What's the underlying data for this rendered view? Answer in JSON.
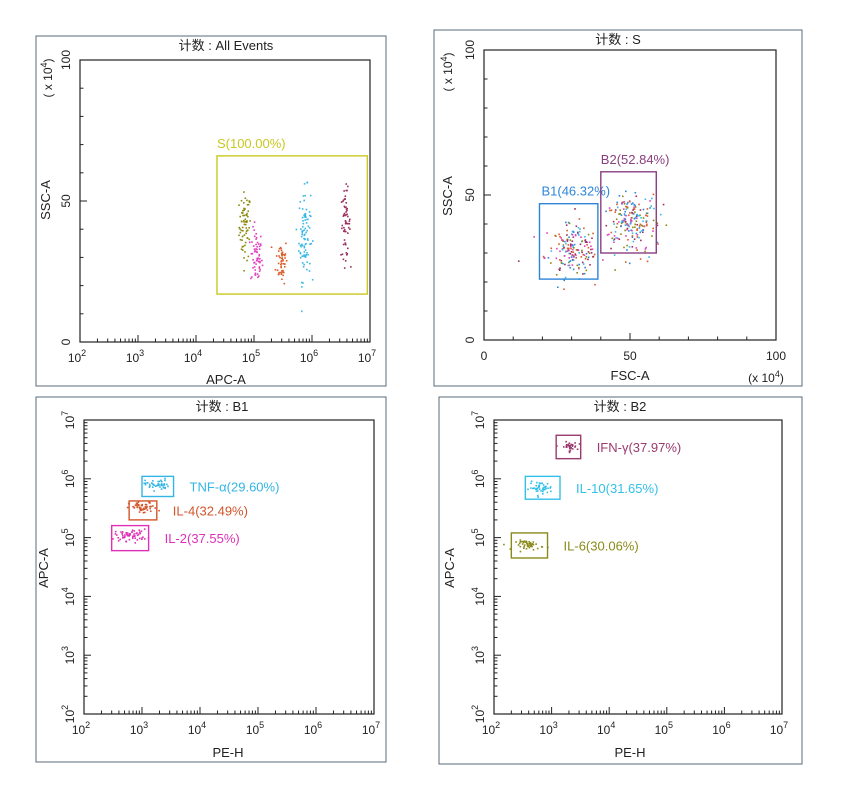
{
  "chart_data": [
    {
      "type": "scatter",
      "title": "计数 : All Events",
      "xlabel": "APC-A",
      "ylabel": "SSC-A",
      "y_multiplier": "( x 10",
      "y_multiplier_exp": "4",
      "y_multiplier_close": ")",
      "xscale": "log",
      "xlim": [
        100,
        10000000
      ],
      "yscale": "linear",
      "ylim": [
        0,
        100
      ],
      "xtick_bases": [
        "10",
        "10",
        "10",
        "10",
        "10",
        "10"
      ],
      "xtick_exps": [
        "2",
        "3",
        "4",
        "5",
        "6",
        "7"
      ],
      "yticks": [
        "0",
        "50",
        "100"
      ],
      "gates": [
        {
          "label": "S(100.00%)",
          "color": "#c8c820",
          "x": [
            23000,
            9000000
          ],
          "y": [
            17,
            66
          ]
        }
      ],
      "series": [
        {
          "color": "#8a8a10",
          "x_center": 70000,
          "y_center": 41,
          "x_spread": 0.05,
          "y_spread": 6,
          "n": 70
        },
        {
          "color": "#e23fbf",
          "x_center": 110000,
          "y_center": 30,
          "x_spread": 0.05,
          "y_spread": 5,
          "n": 60
        },
        {
          "color": "#d85c28",
          "x_center": 300000,
          "y_center": 29,
          "x_spread": 0.05,
          "y_spread": 4,
          "n": 50
        },
        {
          "color": "#3bb8e6",
          "x_center": 750000,
          "y_center": 38,
          "x_spread": 0.05,
          "y_spread": 8,
          "n": 90
        },
        {
          "color": "#9a2f5f",
          "x_center": 3800000,
          "y_center": 42,
          "x_spread": 0.04,
          "y_spread": 6,
          "n": 60
        }
      ]
    },
    {
      "type": "scatter",
      "title": "计数 : S",
      "xlabel": "FSC-A",
      "ylabel": "SSC-A",
      "x_multiplier": "(x 10",
      "x_multiplier_exp": "4",
      "x_multiplier_close": ")",
      "y_multiplier": "( x 10",
      "y_multiplier_exp": "4",
      "y_multiplier_close": ")",
      "xscale": "linear",
      "xlim": [
        0,
        100
      ],
      "yscale": "linear",
      "ylim": [
        0,
        100
      ],
      "xticks": [
        "0",
        "50",
        "100"
      ],
      "yticks": [
        "0",
        "50",
        "100"
      ],
      "gates": [
        {
          "label": "B1(46.32%)",
          "color": "#2f86d8",
          "x": [
            19,
            39
          ],
          "y": [
            21,
            47
          ]
        },
        {
          "label": "B2(52.84%)",
          "color": "#8a3f7f",
          "x": [
            40,
            59
          ],
          "y": [
            30,
            58
          ]
        }
      ],
      "series": [
        {
          "color": "mixed-b1",
          "x_center": 30,
          "y_center": 31,
          "x_spread": 4.5,
          "y_spread": 4.5,
          "n": 180
        },
        {
          "color": "mixed-b2",
          "x_center": 50,
          "y_center": 41,
          "x_spread": 4.5,
          "y_spread": 5,
          "n": 200
        }
      ]
    },
    {
      "type": "scatter",
      "title": "计数 : B1",
      "xlabel": "PE-H",
      "ylabel": "APC-A",
      "xscale": "log",
      "xlim": [
        100,
        10000000
      ],
      "yscale": "log",
      "ylim": [
        100,
        10000000
      ],
      "xtick_bases": [
        "10",
        "10",
        "10",
        "10",
        "10",
        "10"
      ],
      "xtick_exps": [
        "2",
        "3",
        "4",
        "5",
        "6",
        "7"
      ],
      "ytick_bases": [
        "10",
        "10",
        "10",
        "10",
        "10",
        "10"
      ],
      "ytick_exps": [
        "2",
        "3",
        "4",
        "5",
        "6",
        "7"
      ],
      "gates": [
        {
          "label": "TNF-α(29.60%)",
          "color": "#33b5e5",
          "x": [
            1000,
            3500
          ],
          "y": [
            500000,
            1100000
          ]
        },
        {
          "label": "IL-4(32.49%)",
          "color": "#d2552a",
          "x": [
            600,
            1800
          ],
          "y": [
            200000,
            420000
          ]
        },
        {
          "label": "IL-2(37.55%)",
          "color": "#e030b8",
          "x": [
            300,
            1300
          ],
          "y": [
            60000,
            160000
          ]
        }
      ],
      "series": [
        {
          "color": "#33b5e5",
          "x_center": 1800,
          "y_center": 800000,
          "x_spread": 0.1,
          "y_spread": 0.05,
          "n": 45
        },
        {
          "color": "#d2552a",
          "x_center": 1050,
          "y_center": 320000,
          "x_spread": 0.12,
          "y_spread": 0.05,
          "n": 50
        },
        {
          "color": "#e030b8",
          "x_center": 650,
          "y_center": 110000,
          "x_spread": 0.14,
          "y_spread": 0.05,
          "n": 60
        }
      ]
    },
    {
      "type": "scatter",
      "title": "计数 : B2",
      "xlabel": "PE-H",
      "ylabel": "APC-A",
      "xscale": "log",
      "xlim": [
        100,
        10000000
      ],
      "yscale": "log",
      "ylim": [
        100,
        10000000
      ],
      "xtick_bases": [
        "10",
        "10",
        "10",
        "10",
        "10",
        "10"
      ],
      "xtick_exps": [
        "2",
        "3",
        "4",
        "5",
        "6",
        "7"
      ],
      "ytick_bases": [
        "10",
        "10",
        "10",
        "10",
        "10",
        "10"
      ],
      "ytick_exps": [
        "2",
        "3",
        "4",
        "5",
        "6",
        "7"
      ],
      "gates": [
        {
          "label": "IFN-γ(37.97%)",
          "color": "#9a3a6e",
          "x": [
            1200,
            3200
          ],
          "y": [
            2200000,
            5500000
          ]
        },
        {
          "label": "IL-10(31.65%)",
          "color": "#33c0e8",
          "x": [
            350,
            1400
          ],
          "y": [
            450000,
            1100000
          ]
        },
        {
          "label": "IL-6(30.06%)",
          "color": "#8a8a1a",
          "x": [
            200,
            850
          ],
          "y": [
            45000,
            120000
          ]
        }
      ],
      "series": [
        {
          "color": "#9a3a6e",
          "x_center": 2000,
          "y_center": 3500000,
          "x_spread": 0.07,
          "y_spread": 0.04,
          "n": 35
        },
        {
          "color": "#33c0e8",
          "x_center": 650,
          "y_center": 700000,
          "x_spread": 0.1,
          "y_spread": 0.05,
          "n": 45
        },
        {
          "color": "#8a8a1a",
          "x_center": 420,
          "y_center": 75000,
          "x_spread": 0.12,
          "y_spread": 0.04,
          "n": 50
        }
      ]
    }
  ]
}
